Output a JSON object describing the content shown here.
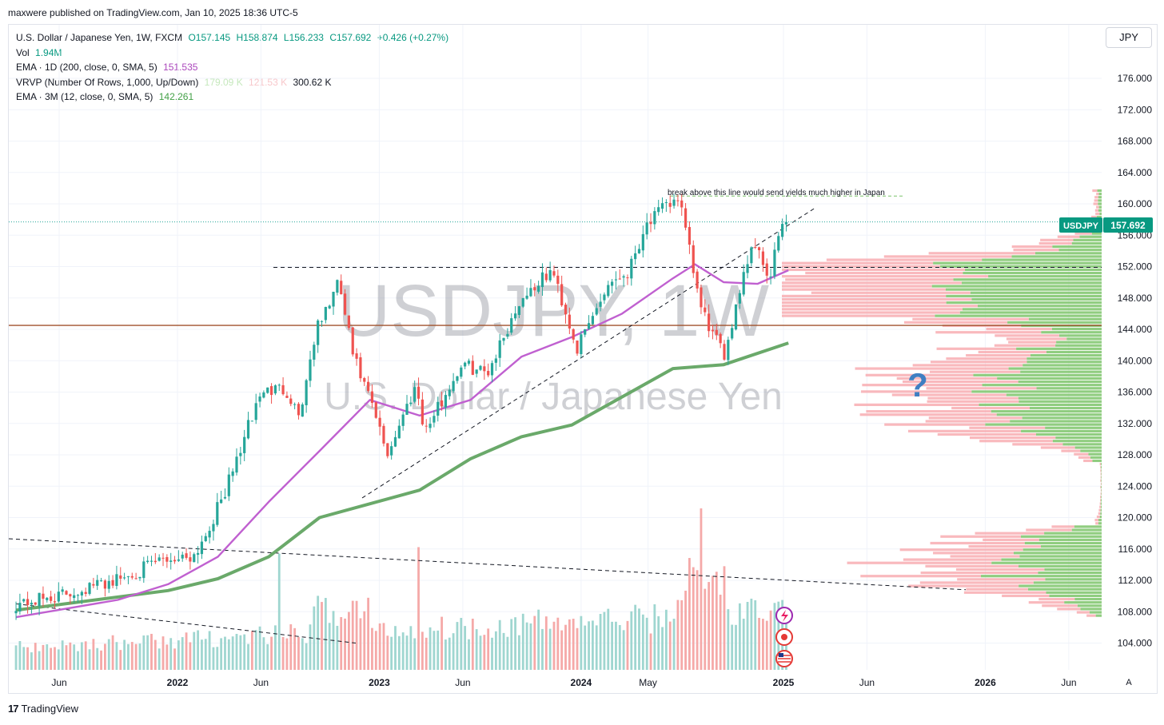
{
  "header": {
    "publisher": "maxwere published on TradingView.com, Jan 10, 2025 18:36 UTC-5"
  },
  "legend": {
    "main": {
      "label": "U.S. Dollar / Japanese Yen, 1W, FXCM",
      "o": "O157.145",
      "h": "H158.874",
      "l": "L156.233",
      "c": "C157.692",
      "chg": "+0.426 (+0.27%)"
    },
    "vol": {
      "label": "Vol",
      "value": "1.94M"
    },
    "ema_1d": {
      "label": "EMA · 1D (200, close, 0, SMA, 5)",
      "value": "151.535",
      "color": "#ab47bc"
    },
    "vrvp": {
      "label": "VRVP (Number Of Rows, 1,000, Up/Down)",
      "v1": "179.09 K",
      "v2": "121.53 K",
      "v3": "300.62 K"
    },
    "ema_3m": {
      "label": "EMA · 3M (12, close, 0, SMA, 5)",
      "value": "142.261",
      "color": "#43a047"
    }
  },
  "currency_button": "JPY",
  "watermark": {
    "symbol": "USDJPY, 1W",
    "name": "U.S. Dollar / Japanese Yen"
  },
  "annotation": "break above this line would send yields much higher in Japan",
  "question_mark": "?",
  "price_label": {
    "symbol": "USDJPY",
    "value": "157.692"
  },
  "footer": {
    "brand": "TradingView",
    "auto_button": "A"
  },
  "colors": {
    "up": "#26a69a",
    "down": "#ef5350",
    "ema1d": "#c060d0",
    "ema3m": "#6aa96a",
    "vp_up": "#7cc46a",
    "vp_down": "#f7a8ad",
    "hline": "#a0522d",
    "price_line": "#26a69a"
  },
  "chart_data": {
    "type": "candlestick",
    "symbol": "USDJPY",
    "interval": "1W",
    "ylim": [
      102,
      181
    ],
    "y_ticks": [
      104,
      108,
      112,
      116,
      120,
      124,
      128,
      132,
      136,
      140,
      144,
      148,
      152,
      156,
      160,
      164,
      168,
      172,
      176
    ],
    "y_tick_labels": [
      "104.000",
      "108.000",
      "112.000",
      "116.000",
      "120.000",
      "124.000",
      "128.000",
      "132.000",
      "136.000",
      "140.000",
      "144.000",
      "148.000",
      "152.000",
      "156.000",
      "160.000",
      "164.000",
      "168.000",
      "172.000",
      "176.000"
    ],
    "x_ticks": [
      {
        "label": "Jun",
        "bold": false,
        "date": "2021-06"
      },
      {
        "label": "2022",
        "bold": true,
        "date": "2022-01"
      },
      {
        "label": "Jun",
        "bold": false,
        "date": "2022-06"
      },
      {
        "label": "2023",
        "bold": true,
        "date": "2023-01"
      },
      {
        "label": "Jun",
        "bold": false,
        "date": "2023-06"
      },
      {
        "label": "2024",
        "bold": true,
        "date": "2024-01"
      },
      {
        "label": "May",
        "bold": false,
        "date": "2024-05"
      },
      {
        "label": "2025",
        "bold": true,
        "date": "2025-01"
      },
      {
        "label": "Jun",
        "bold": false,
        "date": "2025-06"
      },
      {
        "label": "2026",
        "bold": true,
        "date": "2026-01"
      },
      {
        "label": "Jun",
        "bold": false,
        "date": "2026-06"
      }
    ],
    "x_range": [
      "2021-03-15",
      "2026-09-15"
    ],
    "close_path_anchors": [
      {
        "date": "2021-03-15",
        "close": 109.0
      },
      {
        "date": "2021-06-01",
        "close": 110.0
      },
      {
        "date": "2021-10-01",
        "close": 112.5
      },
      {
        "date": "2021-12-01",
        "close": 114.5
      },
      {
        "date": "2022-02-01",
        "close": 115.3
      },
      {
        "date": "2022-03-01",
        "close": 119.0
      },
      {
        "date": "2022-04-01",
        "close": 124.0
      },
      {
        "date": "2022-05-01",
        "close": 130.0
      },
      {
        "date": "2022-06-01",
        "close": 136.0
      },
      {
        "date": "2022-07-15",
        "close": 136.5
      },
      {
        "date": "2022-08-10",
        "close": 133.0
      },
      {
        "date": "2022-09-07",
        "close": 143.5
      },
      {
        "date": "2022-10-20",
        "close": 150.0
      },
      {
        "date": "2022-11-15",
        "close": 140.5
      },
      {
        "date": "2022-12-20",
        "close": 134.0
      },
      {
        "date": "2023-01-15",
        "close": 128.0
      },
      {
        "date": "2023-03-08",
        "close": 137.0
      },
      {
        "date": "2023-03-25",
        "close": 131.0
      },
      {
        "date": "2023-05-30",
        "close": 139.5
      },
      {
        "date": "2023-07-15",
        "close": 138.5
      },
      {
        "date": "2023-09-15",
        "close": 148.0
      },
      {
        "date": "2023-11-10",
        "close": 151.5
      },
      {
        "date": "2023-12-25",
        "close": 141.5
      },
      {
        "date": "2024-02-20",
        "close": 150.0
      },
      {
        "date": "2024-03-25",
        "close": 151.3
      },
      {
        "date": "2024-04-28",
        "close": 157.5
      },
      {
        "date": "2024-06-25",
        "close": 161.0
      },
      {
        "date": "2024-08-05",
        "close": 146.5
      },
      {
        "date": "2024-09-15",
        "close": 140.5
      },
      {
        "date": "2024-10-25",
        "close": 152.5
      },
      {
        "date": "2024-11-15",
        "close": 155.5
      },
      {
        "date": "2024-12-05",
        "close": 149.5
      },
      {
        "date": "2024-12-28",
        "close": 157.5
      },
      {
        "date": "2025-01-10",
        "close": 157.692
      }
    ],
    "ema_1d_200": [
      {
        "date": "2021-03-15",
        "y": 107.3
      },
      {
        "date": "2021-09-15",
        "y": 109.5
      },
      {
        "date": "2021-12-15",
        "y": 111.5
      },
      {
        "date": "2022-03-15",
        "y": 115.0
      },
      {
        "date": "2022-06-15",
        "y": 122.0
      },
      {
        "date": "2022-09-15",
        "y": 128.5
      },
      {
        "date": "2022-12-15",
        "y": 135.0
      },
      {
        "date": "2023-03-15",
        "y": 133.0
      },
      {
        "date": "2023-06-15",
        "y": 135.0
      },
      {
        "date": "2023-09-15",
        "y": 140.5
      },
      {
        "date": "2023-12-15",
        "y": 143.0
      },
      {
        "date": "2024-03-15",
        "y": 146.0
      },
      {
        "date": "2024-06-15",
        "y": 150.5
      },
      {
        "date": "2024-07-25",
        "y": 152.3
      },
      {
        "date": "2024-09-15",
        "y": 150.0
      },
      {
        "date": "2024-11-15",
        "y": 149.8
      },
      {
        "date": "2025-01-10",
        "y": 151.535
      }
    ],
    "ema_3m_12": [
      {
        "date": "2021-03-15",
        "y": 108.2
      },
      {
        "date": "2021-12-15",
        "y": 110.7
      },
      {
        "date": "2022-03-15",
        "y": 112.2
      },
      {
        "date": "2022-06-15",
        "y": 115.0
      },
      {
        "date": "2022-09-15",
        "y": 120.0
      },
      {
        "date": "2023-03-15",
        "y": 123.5
      },
      {
        "date": "2023-06-15",
        "y": 127.5
      },
      {
        "date": "2023-09-15",
        "y": 130.3
      },
      {
        "date": "2023-12-15",
        "y": 131.8
      },
      {
        "date": "2024-06-15",
        "y": 139.0
      },
      {
        "date": "2024-09-15",
        "y": 139.5
      },
      {
        "date": "2025-01-10",
        "y": 142.261
      }
    ],
    "volume_range": [
      0,
      2.5
    ],
    "volume_profile": {
      "peak_rows": [
        146,
        148,
        150,
        152,
        140,
        136,
        132,
        112,
        116
      ]
    },
    "drawings": {
      "horizontal_level": 144.5,
      "dashed_level": 151.9,
      "rising_trendline": [
        {
          "date": "2022-12-01",
          "y": 122.5
        },
        {
          "date": "2025-01-20",
          "y": 159.5
        }
      ],
      "falling_trendline": [
        {
          "date": "2021-03-15",
          "y": 117.3
        },
        {
          "date": "2025-12-15",
          "y": 110.8
        }
      ],
      "lower_falling_line": [
        {
          "date": "2021-04-01",
          "y": 109.0
        },
        {
          "date": "2022-11-30",
          "y": 104.0
        }
      ],
      "green_dashed_level": 161.0
    },
    "last_price": 157.692
  }
}
